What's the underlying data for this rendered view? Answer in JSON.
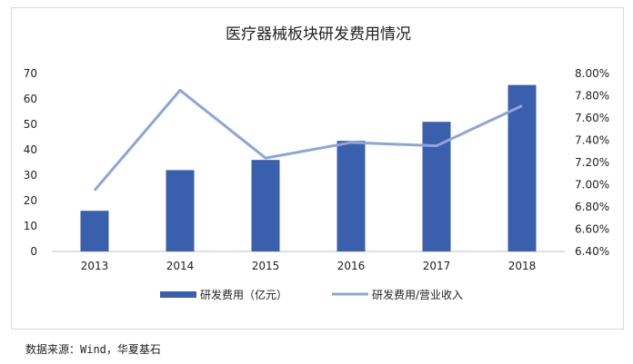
{
  "chart_data": {
    "type": "bar",
    "title": "医疗器械板块研发费用情况",
    "categories": [
      "2013",
      "2014",
      "2015",
      "2016",
      "2017",
      "2018"
    ],
    "series": [
      {
        "name": "研发费用（亿元）",
        "type": "bar",
        "axis": "left",
        "color": "#3a5fad",
        "values": [
          16,
          32,
          36,
          43.5,
          51,
          65.5
        ]
      },
      {
        "name": "研发费用/营业收入",
        "type": "line",
        "axis": "right",
        "color": "#8ea5da",
        "values": [
          6.95,
          7.85,
          7.24,
          7.38,
          7.35,
          7.71
        ]
      }
    ],
    "ylim_left": [
      0,
      70
    ],
    "yticks_left": [
      "0",
      "10",
      "20",
      "30",
      "40",
      "50",
      "60",
      "70"
    ],
    "ylim_right": [
      6.4,
      8.0
    ],
    "yticks_right": [
      "6.40%",
      "6.60%",
      "6.80%",
      "7.00%",
      "7.20%",
      "7.40%",
      "7.60%",
      "7.80%",
      "8.00%"
    ],
    "grid": false,
    "legend": "bottom"
  },
  "source": "数据来源：Wind，华夏基石"
}
